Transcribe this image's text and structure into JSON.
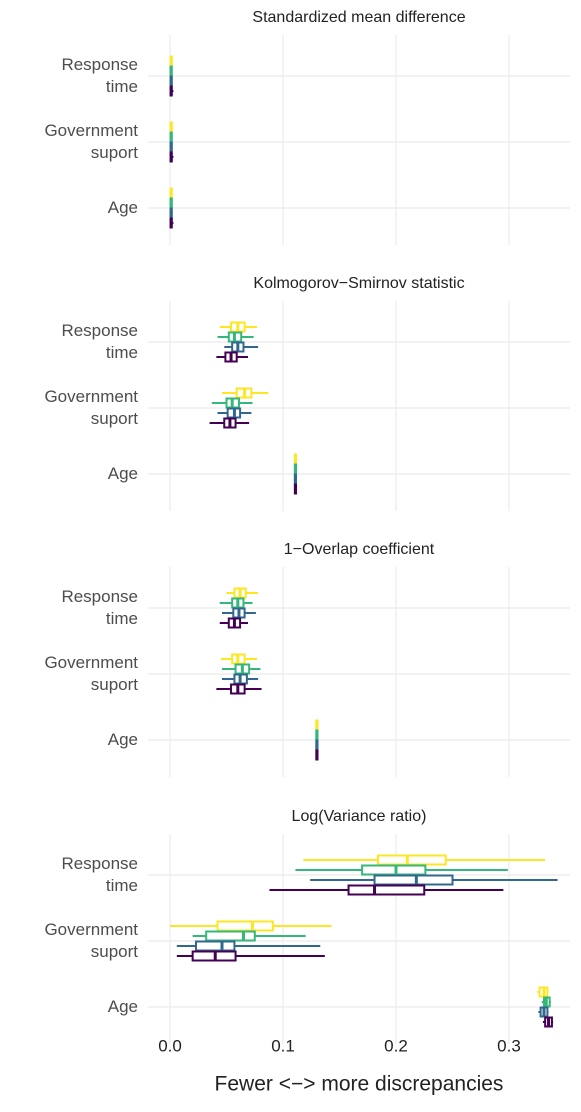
{
  "chart_data": [
    {
      "type": "boxplot",
      "title": "Standardized mean difference",
      "categories": [
        "Response time",
        "Government suport",
        "Age"
      ],
      "xlim": [
        -0.0195,
        0.354
      ],
      "xticks": [
        {
          "value": 0,
          "label": "0.0"
        },
        0.1,
        0.2,
        0.3
      ],
      "series": [
        {
          "color": "#fde725",
          "values": [
            {
              "min": 0,
              "q1": 0.0005,
              "median": 0.001,
              "q3": 0.0015,
              "max": 0.002
            },
            {
              "min": 0,
              "q1": 0.0005,
              "median": 0.001,
              "q3": 0.0015,
              "max": 0.002
            },
            {
              "min": 0,
              "q1": 0.0005,
              "median": 0.001,
              "q3": 0.0015,
              "max": 0.002
            }
          ]
        },
        {
          "color": "#35b779",
          "values": [
            {
              "min": 0,
              "q1": 0.0005,
              "median": 0.001,
              "q3": 0.0015,
              "max": 0.002
            },
            {
              "min": 0,
              "q1": 0.0005,
              "median": 0.001,
              "q3": 0.0015,
              "max": 0.002
            },
            {
              "min": 0,
              "q1": 0.0005,
              "median": 0.001,
              "q3": 0.0015,
              "max": 0.002
            }
          ]
        },
        {
          "color": "#31688e",
          "values": [
            {
              "min": 0,
              "q1": 0.0005,
              "median": 0.001,
              "q3": 0.0015,
              "max": 0.002
            },
            {
              "min": 0,
              "q1": 0.0005,
              "median": 0.001,
              "q3": 0.0015,
              "max": 0.002
            },
            {
              "min": 0,
              "q1": 0.0005,
              "median": 0.001,
              "q3": 0.0015,
              "max": 0.002
            }
          ]
        },
        {
          "color": "#440154",
          "values": [
            {
              "min": 0,
              "q1": 0.0005,
              "median": 0.001,
              "q3": 0.0015,
              "max": 0.003
            },
            {
              "min": 0,
              "q1": 0.0005,
              "median": 0.001,
              "q3": 0.0015,
              "max": 0.003
            },
            {
              "min": 0,
              "q1": 0.0005,
              "median": 0.001,
              "q3": 0.0015,
              "max": 0.003
            }
          ]
        }
      ]
    },
    {
      "type": "boxplot",
      "title": "Kolmogorov−Smirnov statistic",
      "categories": [
        "Response time",
        "Government suport",
        "Age"
      ],
      "xlim": [
        -0.0195,
        0.354
      ],
      "xticks": [
        {
          "value": 0,
          "label": "0.0"
        },
        0.1,
        0.2,
        0.3
      ],
      "series": [
        {
          "color": "#fde725",
          "values": [
            {
              "min": 0.044,
              "q1": 0.054,
              "median": 0.06,
              "q3": 0.066,
              "max": 0.077
            },
            {
              "min": 0.046,
              "q1": 0.059,
              "median": 0.066,
              "q3": 0.072,
              "max": 0.087
            },
            {
              "min": 0.11,
              "q1": 0.1105,
              "median": 0.111,
              "q3": 0.1115,
              "max": 0.112
            }
          ]
        },
        {
          "color": "#35b779",
          "values": [
            {
              "min": 0.042,
              "q1": 0.052,
              "median": 0.057,
              "q3": 0.063,
              "max": 0.074
            },
            {
              "min": 0.037,
              "q1": 0.05,
              "median": 0.055,
              "q3": 0.061,
              "max": 0.073
            },
            {
              "min": 0.11,
              "q1": 0.1105,
              "median": 0.111,
              "q3": 0.1115,
              "max": 0.112
            }
          ]
        },
        {
          "color": "#31688e",
          "values": [
            {
              "min": 0.048,
              "q1": 0.055,
              "median": 0.06,
              "q3": 0.065,
              "max": 0.078
            },
            {
              "min": 0.042,
              "q1": 0.051,
              "median": 0.057,
              "q3": 0.062,
              "max": 0.072
            },
            {
              "min": 0.11,
              "q1": 0.1105,
              "median": 0.111,
              "q3": 0.1115,
              "max": 0.112
            }
          ]
        },
        {
          "color": "#440154",
          "values": [
            {
              "min": 0.041,
              "q1": 0.049,
              "median": 0.054,
              "q3": 0.059,
              "max": 0.069
            },
            {
              "min": 0.035,
              "q1": 0.048,
              "median": 0.053,
              "q3": 0.058,
              "max": 0.07
            },
            {
              "min": 0.11,
              "q1": 0.1105,
              "median": 0.111,
              "q3": 0.1115,
              "max": 0.112
            }
          ]
        }
      ]
    },
    {
      "type": "boxplot",
      "title": "1−Overlap coefficient",
      "categories": [
        "Response time",
        "Government suport",
        "Age"
      ],
      "xlim": [
        -0.0195,
        0.354
      ],
      "xticks": [
        {
          "value": 0,
          "label": "0.0"
        },
        0.1,
        0.2,
        0.3
      ],
      "series": [
        {
          "color": "#fde725",
          "values": [
            {
              "min": 0.05,
              "q1": 0.057,
              "median": 0.062,
              "q3": 0.067,
              "max": 0.078
            },
            {
              "min": 0.045,
              "q1": 0.055,
              "median": 0.06,
              "q3": 0.066,
              "max": 0.077
            },
            {
              "min": 0.129,
              "q1": 0.1295,
              "median": 0.13,
              "q3": 0.1305,
              "max": 0.131
            }
          ]
        },
        {
          "color": "#35b779",
          "values": [
            {
              "min": 0.044,
              "q1": 0.055,
              "median": 0.06,
              "q3": 0.065,
              "max": 0.073
            },
            {
              "min": 0.046,
              "q1": 0.058,
              "median": 0.064,
              "q3": 0.07,
              "max": 0.08
            },
            {
              "min": 0.129,
              "q1": 0.1295,
              "median": 0.13,
              "q3": 0.1305,
              "max": 0.131
            }
          ]
        },
        {
          "color": "#31688e",
          "values": [
            {
              "min": 0.046,
              "q1": 0.056,
              "median": 0.061,
              "q3": 0.066,
              "max": 0.076
            },
            {
              "min": 0.046,
              "q1": 0.057,
              "median": 0.062,
              "q3": 0.068,
              "max": 0.078
            },
            {
              "min": 0.129,
              "q1": 0.1295,
              "median": 0.13,
              "q3": 0.1305,
              "max": 0.131
            }
          ]
        },
        {
          "color": "#440154",
          "values": [
            {
              "min": 0.044,
              "q1": 0.052,
              "median": 0.057,
              "q3": 0.062,
              "max": 0.069
            },
            {
              "min": 0.041,
              "q1": 0.054,
              "median": 0.06,
              "q3": 0.066,
              "max": 0.081
            },
            {
              "min": 0.129,
              "q1": 0.1295,
              "median": 0.13,
              "q3": 0.1305,
              "max": 0.131
            }
          ]
        }
      ]
    },
    {
      "type": "boxplot",
      "title": "Log(Variance ratio)",
      "categories": [
        "Response time",
        "Government suport",
        "Age"
      ],
      "xlim": [
        -0.0195,
        0.354
      ],
      "xticks": [
        {
          "value": 0,
          "label": "0.0"
        },
        0.1,
        0.2,
        0.3
      ],
      "xlabel": "Fewer <−> more discrepancies",
      "series": [
        {
          "color": "#fde725",
          "values": [
            {
              "min": 0.118,
              "q1": 0.184,
              "median": 0.21,
              "q3": 0.244,
              "max": 0.332
            },
            {
              "min": 0.0,
              "q1": 0.042,
              "median": 0.073,
              "q3": 0.091,
              "max": 0.143
            },
            {
              "min": 0.325,
              "q1": 0.327,
              "median": 0.331,
              "q3": 0.334,
              "max": 0.335
            }
          ]
        },
        {
          "color": "#35b779",
          "values": [
            {
              "min": 0.111,
              "q1": 0.17,
              "median": 0.2,
              "q3": 0.226,
              "max": 0.299
            },
            {
              "min": 0.02,
              "q1": 0.032,
              "median": 0.065,
              "q3": 0.075,
              "max": 0.12
            },
            {
              "min": 0.329,
              "q1": 0.331,
              "median": 0.333,
              "q3": 0.336,
              "max": 0.337
            }
          ]
        },
        {
          "color": "#31688e",
          "values": [
            {
              "min": 0.124,
              "q1": 0.181,
              "median": 0.218,
              "q3": 0.25,
              "max": 0.343
            },
            {
              "min": 0.006,
              "q1": 0.023,
              "median": 0.046,
              "q3": 0.057,
              "max": 0.133
            },
            {
              "min": 0.326,
              "q1": 0.328,
              "median": 0.331,
              "q3": 0.334,
              "max": 0.335
            }
          ]
        },
        {
          "color": "#440154",
          "values": [
            {
              "min": 0.088,
              "q1": 0.158,
              "median": 0.181,
              "q3": 0.225,
              "max": 0.295
            },
            {
              "min": 0.006,
              "q1": 0.02,
              "median": 0.04,
              "q3": 0.058,
              "max": 0.137
            },
            {
              "min": 0.33,
              "q1": 0.332,
              "median": 0.335,
              "q3": 0.338,
              "max": 0.339
            }
          ]
        }
      ]
    }
  ]
}
